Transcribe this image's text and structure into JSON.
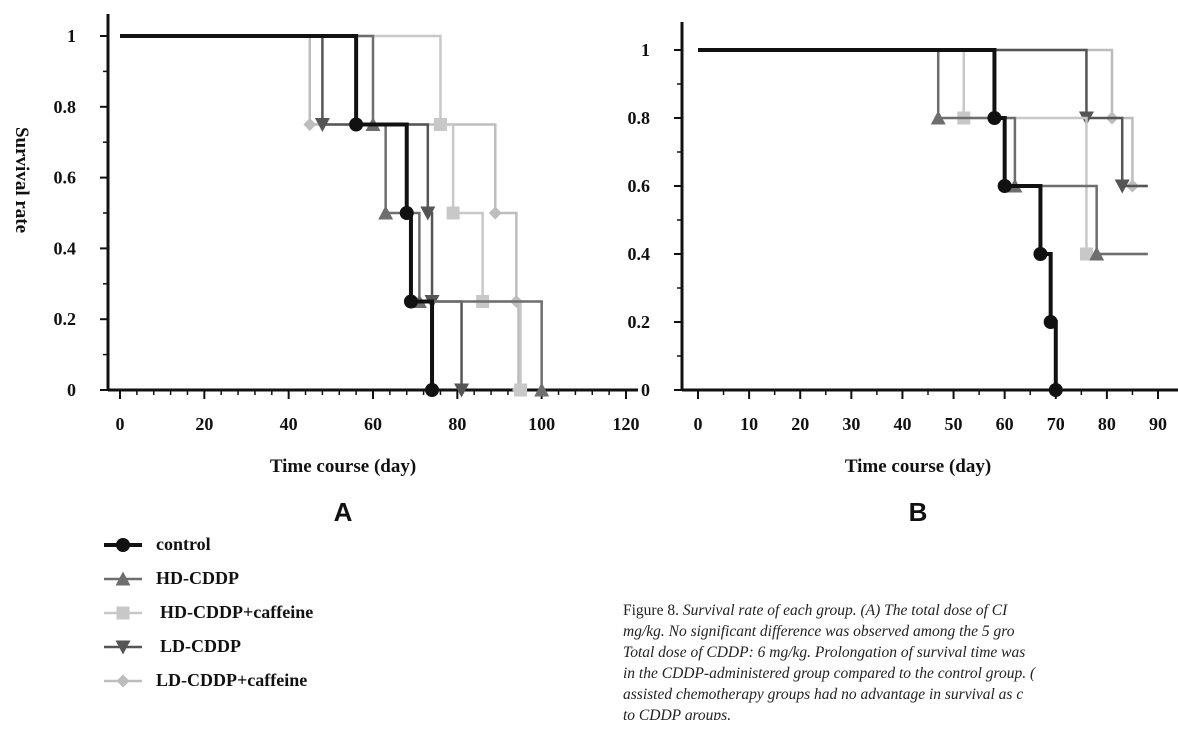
{
  "series_styles": [
    {
      "name": "control",
      "color": "#111111",
      "marker": "circle"
    },
    {
      "name": "HD-CDDP",
      "color": "#6e6e6e",
      "marker": "triangle-up"
    },
    {
      "name": "HD-CDDP+caffeine",
      "color": "#c8c8c8",
      "marker": "square"
    },
    {
      "name": "LD-CDDP",
      "color": "#555555",
      "marker": "triangle-down"
    },
    {
      "name": "LD-CDDP+caffeine",
      "color": "#bdbdbd",
      "marker": "diamond"
    }
  ],
  "chart_data": [
    {
      "type": "line",
      "panel_label": "A",
      "xlabel": "Time course (day)",
      "ylabel": "Survival rate",
      "xlim": [
        0,
        120
      ],
      "ylim": [
        0,
        1
      ],
      "x_ticks": [
        0,
        20,
        40,
        60,
        80,
        100,
        120
      ],
      "y_ticks": [
        0,
        0.2,
        0.4,
        0.6,
        0.8,
        1
      ],
      "y_tick_labels": [
        "0",
        "0.2",
        "0.4",
        "0.6",
        "0.8",
        "1"
      ],
      "legend_position": "bottom-left",
      "series": [
        {
          "name": "control",
          "steps": [
            [
              0,
              1
            ],
            [
              56,
              0.75
            ],
            [
              68,
              0.5
            ],
            [
              69,
              0.25
            ],
            [
              74,
              0
            ]
          ]
        },
        {
          "name": "HD-CDDP",
          "steps": [
            [
              0,
              1
            ],
            [
              60,
              0.75
            ],
            [
              63,
              0.5
            ],
            [
              71,
              0.25
            ],
            [
              100,
              0
            ]
          ]
        },
        {
          "name": "HD-CDDP+caffeine",
          "steps": [
            [
              0,
              1
            ],
            [
              76,
              0.75
            ],
            [
              79,
              0.5
            ],
            [
              86,
              0.25
            ],
            [
              95,
              0
            ]
          ]
        },
        {
          "name": "LD-CDDP",
          "steps": [
            [
              0,
              1
            ],
            [
              48,
              0.75
            ],
            [
              73,
              0.5
            ],
            [
              74,
              0.25
            ],
            [
              81,
              0
            ]
          ]
        },
        {
          "name": "LD-CDDP+caffeine",
          "steps": [
            [
              0,
              1
            ],
            [
              45,
              0.75
            ],
            [
              89,
              0.5
            ],
            [
              94,
              0.25
            ],
            [
              94.5,
              0
            ]
          ]
        }
      ]
    },
    {
      "type": "line",
      "panel_label": "B",
      "xlabel": "Time course (day)",
      "ylabel": "",
      "xlim": [
        0,
        90
      ],
      "ylim": [
        0,
        1
      ],
      "x_ticks": [
        0,
        10,
        20,
        30,
        40,
        50,
        60,
        70,
        80,
        90
      ],
      "y_ticks": [
        0,
        0.2,
        0.4,
        0.6,
        0.8,
        1
      ],
      "y_tick_labels": [
        "0",
        "0.2",
        "0.4",
        "0.6",
        "0.8",
        "1"
      ],
      "series": [
        {
          "name": "control",
          "steps": [
            [
              0,
              1
            ],
            [
              58,
              0.8
            ],
            [
              60,
              0.6
            ],
            [
              67,
              0.4
            ],
            [
              69,
              0.2
            ],
            [
              70,
              0
            ]
          ]
        },
        {
          "name": "HD-CDDP",
          "steps": [
            [
              0,
              1
            ],
            [
              47,
              0.8
            ],
            [
              62,
              0.6
            ],
            [
              78,
              0.4
            ]
          ],
          "end_x": 88
        },
        {
          "name": "HD-CDDP+caffeine",
          "steps": [
            [
              0,
              1
            ],
            [
              52,
              0.8
            ],
            [
              76,
              0.4
            ]
          ],
          "end_x": 88
        },
        {
          "name": "LD-CDDP",
          "steps": [
            [
              0,
              1
            ],
            [
              76,
              0.8
            ],
            [
              83,
              0.6
            ]
          ],
          "end_x": 88
        },
        {
          "name": "LD-CDDP+caffeine",
          "steps": [
            [
              0,
              1
            ],
            [
              81,
              0.8
            ],
            [
              85,
              0.6
            ]
          ],
          "end_x": 88
        }
      ]
    }
  ],
  "caption": {
    "label": "Figure 8.",
    "lines": [
      "Survival rate of each group. (A) The total dose of CI",
      "mg/kg. No significant difference was observed among the 5 gro",
      "Total dose of CDDP: 6 mg/kg. Prolongation of survival time was",
      "in the CDDP-administered group compared to the control group. (",
      "assisted chemotherapy groups had no advantage in survival as c",
      "to CDDP groups."
    ]
  }
}
